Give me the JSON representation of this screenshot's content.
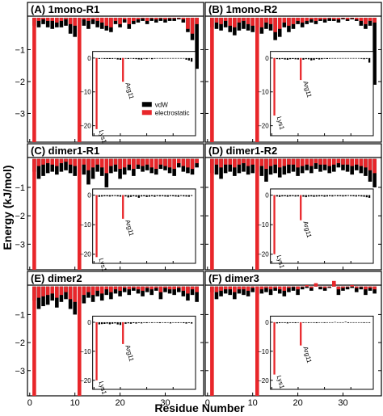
{
  "figure": {
    "xlabel": "Residue Number",
    "ylabel": "Energy (kJ/mol)",
    "colors": {
      "vdw": "#000000",
      "electrostatic": "#e8262a"
    }
  },
  "legend": {
    "vdw": "vdW",
    "electrostatic": "electrostatic"
  },
  "chart_data": [
    {
      "type": "bar",
      "panel": "(A) 1mono-R1",
      "x": [
        1,
        2,
        3,
        4,
        5,
        6,
        7,
        8,
        9,
        10,
        11,
        12,
        13,
        14,
        15,
        16,
        17,
        18,
        19,
        20,
        21,
        22,
        23,
        24,
        25,
        26,
        27,
        28,
        29,
        30,
        31,
        32,
        33,
        34,
        35,
        36,
        37
      ],
      "series": [
        {
          "name": "vdW",
          "values": [
            -0.25,
            -0.3,
            -0.2,
            -0.3,
            -0.35,
            -0.3,
            -0.3,
            -0.25,
            -0.5,
            -0.6,
            -0.15,
            -0.25,
            -0.35,
            -0.2,
            -0.3,
            -0.35,
            -0.4,
            -0.45,
            -0.2,
            -0.3,
            -0.15,
            -0.35,
            -0.2,
            -0.15,
            -0.1,
            -0.2,
            -0.1,
            -0.15,
            -0.1,
            -0.15,
            -0.1,
            -0.1,
            -0.05,
            -0.15,
            -0.45,
            -0.7,
            -1.6
          ]
        },
        {
          "name": "electrostatic",
          "values": [
            -3.9,
            -0.1,
            -0.05,
            -0.1,
            -0.1,
            -0.15,
            -0.1,
            -0.05,
            -0.2,
            -0.25,
            -3.9,
            -0.05,
            -0.1,
            -0.05,
            -0.1,
            -0.15,
            -0.25,
            -0.3,
            -0.1,
            -0.2,
            -0.05,
            -0.2,
            -0.1,
            -0.05,
            -0.02,
            -0.1,
            -0.02,
            -0.05,
            -0.02,
            -0.05,
            -0.02,
            -0.02,
            0,
            -0.05,
            -0.35,
            -0.5,
            -0.2
          ]
        }
      ],
      "inset": {
        "labels": [
          "Lys1",
          "Arg11"
        ],
        "electrostatic": [
          -21,
          -7
        ],
        "ylim": [
          -22,
          1
        ],
        "yticks": [
          0,
          -10,
          -20
        ]
      },
      "ylim": [
        -3.9,
        0.05
      ],
      "yticks": [
        -1,
        -2,
        -3
      ]
    },
    {
      "type": "bar",
      "panel": "(B) 1mono-R2",
      "x": [
        1,
        2,
        3,
        4,
        5,
        6,
        7,
        8,
        9,
        10,
        11,
        12,
        13,
        14,
        15,
        16,
        17,
        18,
        19,
        20,
        21,
        22,
        23,
        24,
        25,
        26,
        27,
        28,
        29,
        30,
        31,
        32,
        33,
        34,
        35,
        36,
        37
      ],
      "series": [
        {
          "name": "vdW",
          "values": [
            -0.3,
            -0.35,
            -0.4,
            -0.3,
            -0.45,
            -0.55,
            -0.4,
            -0.35,
            -0.4,
            -0.45,
            -0.3,
            -0.5,
            -0.35,
            -0.4,
            -0.7,
            -0.6,
            -0.3,
            -0.45,
            -0.35,
            -0.2,
            -0.3,
            -0.2,
            -0.15,
            -0.2,
            -0.1,
            -0.15,
            -0.1,
            -0.1,
            -0.15,
            -0.05,
            -0.1,
            -0.05,
            -0.1,
            -0.25,
            -0.35,
            -0.25,
            -2.1
          ]
        },
        {
          "name": "electrostatic",
          "values": [
            -3.9,
            -0.15,
            -0.2,
            -0.1,
            -0.25,
            -0.3,
            -0.15,
            -0.1,
            -0.2,
            -0.25,
            -3.9,
            -0.3,
            -0.15,
            -0.2,
            -0.45,
            -0.35,
            -0.15,
            -0.25,
            -0.2,
            -0.1,
            -0.15,
            -0.1,
            -0.05,
            -0.1,
            -0.05,
            -0.05,
            -0.02,
            -0.05,
            -0.05,
            0,
            -0.05,
            0,
            -0.05,
            -0.1,
            -0.2,
            -0.1,
            -0.15
          ]
        }
      ],
      "inset": {
        "labels": [
          "Lys1",
          "Arg11"
        ],
        "electrostatic": [
          -17,
          -6.5
        ],
        "ylim": [
          -22,
          1
        ],
        "yticks": [
          0,
          -10,
          -20
        ]
      },
      "ylim": [
        -3.9,
        0.05
      ],
      "yticks": [
        -1,
        -2,
        -3
      ]
    },
    {
      "type": "bar",
      "panel": "(C) dimer1-R1",
      "x": [
        1,
        2,
        3,
        4,
        5,
        6,
        7,
        8,
        9,
        10,
        11,
        12,
        13,
        14,
        15,
        16,
        17,
        18,
        19,
        20,
        21,
        22,
        23,
        24,
        25,
        26,
        27,
        28,
        29,
        30,
        31,
        32,
        33,
        34,
        35,
        36,
        37
      ],
      "series": [
        {
          "name": "vdW",
          "values": [
            -0.45,
            -0.7,
            -0.6,
            -0.5,
            -0.45,
            -0.55,
            -0.45,
            -0.4,
            -0.5,
            -0.6,
            -0.4,
            -0.55,
            -0.9,
            -0.7,
            -0.45,
            -0.6,
            -1.0,
            -0.5,
            -0.45,
            -0.7,
            -0.55,
            -0.4,
            -0.6,
            -0.35,
            -0.45,
            -0.4,
            -0.5,
            -0.55,
            -0.35,
            -0.4,
            -0.5,
            -0.6,
            -0.3,
            -0.45,
            -0.5,
            -0.55,
            -0.3
          ]
        },
        {
          "name": "electrostatic",
          "values": [
            -3.9,
            -0.25,
            -0.2,
            -0.15,
            -0.2,
            -0.25,
            -0.15,
            -0.1,
            -0.2,
            -0.25,
            -3.9,
            -0.2,
            -0.4,
            -0.3,
            -0.2,
            -0.3,
            -0.5,
            -0.25,
            -0.2,
            -0.35,
            -0.3,
            -0.2,
            -0.35,
            -0.2,
            -0.25,
            -0.2,
            -0.3,
            -0.35,
            -0.2,
            -0.25,
            -0.3,
            -0.35,
            -0.15,
            -0.25,
            -0.3,
            -0.35,
            -0.15
          ]
        }
      ],
      "inset": {
        "labels": [
          "Lys1",
          "Arg11"
        ],
        "electrostatic": [
          -21,
          -8
        ],
        "ylim": [
          -22,
          1
        ],
        "yticks": [
          0,
          -10,
          -20
        ]
      },
      "ylim": [
        -3.9,
        0.05
      ],
      "yticks": [
        -1,
        -2,
        -3
      ]
    },
    {
      "type": "bar",
      "panel": "(D) dimer1-R2",
      "x": [
        1,
        2,
        3,
        4,
        5,
        6,
        7,
        8,
        9,
        10,
        11,
        12,
        13,
        14,
        15,
        16,
        17,
        18,
        19,
        20,
        21,
        22,
        23,
        24,
        25,
        26,
        27,
        28,
        29,
        30,
        31,
        32,
        33,
        34,
        35,
        36,
        37
      ],
      "series": [
        {
          "name": "vdW",
          "values": [
            -0.5,
            -0.55,
            -0.7,
            -0.5,
            -0.45,
            -0.6,
            -0.5,
            -0.45,
            -0.55,
            -0.5,
            -0.45,
            -0.6,
            -0.8,
            -0.55,
            -0.5,
            -0.65,
            -0.55,
            -0.5,
            -0.45,
            -0.6,
            -0.5,
            -0.4,
            -0.5,
            -0.35,
            -0.45,
            -0.4,
            -0.5,
            -0.45,
            -0.3,
            -0.4,
            -0.45,
            -0.55,
            -0.4,
            -0.5,
            -0.6,
            -0.8,
            -1.0
          ]
        },
        {
          "name": "electrostatic",
          "values": [
            -3.9,
            -0.2,
            -0.3,
            -0.2,
            -0.2,
            -0.3,
            -0.2,
            -0.15,
            -0.25,
            -0.2,
            -3.9,
            -0.25,
            -0.35,
            -0.25,
            -0.2,
            -0.3,
            -0.25,
            -0.2,
            -0.2,
            -0.3,
            -0.25,
            -0.2,
            -0.25,
            -0.15,
            -0.2,
            -0.2,
            -0.25,
            -0.2,
            -0.15,
            -0.2,
            -0.2,
            -0.25,
            -0.2,
            -0.25,
            -0.3,
            -0.4,
            -0.5
          ]
        }
      ],
      "inset": {
        "labels": [
          "Lys1",
          "Arg11"
        ],
        "electrostatic": [
          -20,
          -8.5
        ],
        "ylim": [
          -22,
          1
        ],
        "yticks": [
          0,
          -10,
          -20
        ]
      },
      "ylim": [
        -3.9,
        0.05
      ],
      "yticks": [
        -1,
        -2,
        -3
      ]
    },
    {
      "type": "bar",
      "panel": "(E) dimer2",
      "x": [
        1,
        2,
        3,
        4,
        5,
        6,
        7,
        8,
        9,
        10,
        11,
        12,
        13,
        14,
        15,
        16,
        17,
        18,
        19,
        20,
        21,
        22,
        23,
        24,
        25,
        26,
        27,
        28,
        29,
        30,
        31,
        32,
        33,
        34,
        35,
        36,
        37
      ],
      "series": [
        {
          "name": "vdW",
          "values": [
            -0.5,
            -0.8,
            -0.7,
            -0.65,
            -0.5,
            -0.75,
            -0.55,
            -0.45,
            -0.8,
            -1.0,
            -0.5,
            -0.6,
            -0.4,
            -0.55,
            -0.35,
            -0.5,
            -0.3,
            -0.45,
            -0.25,
            -0.35,
            -0.2,
            -0.3,
            -0.15,
            -0.25,
            -0.35,
            -0.2,
            -0.3,
            -0.15,
            -0.45,
            -0.2,
            -0.25,
            -0.3,
            -0.2,
            -0.35,
            -0.5,
            -0.3,
            -0.55
          ]
        },
        {
          "name": "electrostatic",
          "values": [
            -3.9,
            -0.4,
            -0.35,
            -0.3,
            -0.25,
            -0.4,
            -0.3,
            -0.2,
            -0.45,
            -0.55,
            -3.9,
            -0.3,
            -0.2,
            -0.3,
            -0.15,
            -0.25,
            -0.1,
            -0.2,
            -0.1,
            -0.15,
            -0.05,
            -0.1,
            -0.05,
            -0.1,
            -0.15,
            -0.05,
            -0.1,
            -0.05,
            -0.2,
            -0.05,
            -0.1,
            -0.1,
            -0.05,
            -0.15,
            -0.25,
            -0.1,
            -0.2
          ]
        }
      ],
      "inset": {
        "labels": [
          "Lys1",
          "Arg11"
        ],
        "electrostatic": [
          -20,
          -7.5
        ],
        "ylim": [
          -22,
          1
        ],
        "yticks": [
          0,
          -10,
          -20
        ]
      },
      "ylim": [
        -3.9,
        0.05
      ],
      "yticks": [
        -1,
        -2,
        -3
      ]
    },
    {
      "type": "bar",
      "panel": "(F) dimer3",
      "x": [
        1,
        2,
        3,
        4,
        5,
        6,
        7,
        8,
        9,
        10,
        11,
        12,
        13,
        14,
        15,
        16,
        17,
        18,
        19,
        20,
        21,
        22,
        23,
        24,
        25,
        26,
        27,
        28,
        29,
        30,
        31,
        32,
        33,
        34,
        35,
        36,
        37
      ],
      "series": [
        {
          "name": "vdW",
          "values": [
            -0.2,
            -0.45,
            -0.35,
            -0.25,
            -0.3,
            -0.45,
            -0.25,
            -0.3,
            -0.35,
            -0.2,
            -0.3,
            -0.25,
            -0.2,
            -0.3,
            -0.15,
            -0.25,
            -0.35,
            -0.2,
            -0.15,
            -0.3,
            -0.1,
            -0.05,
            -0.15,
            0.05,
            -0.1,
            -0.15,
            -0.05,
            0.1,
            -0.3,
            -0.15,
            -0.1,
            -0.05,
            -0.2,
            -0.1,
            -0.3,
            -0.15,
            -0.25
          ]
        },
        {
          "name": "electrostatic",
          "values": [
            -3.9,
            -0.2,
            -0.15,
            -0.1,
            -0.1,
            -0.2,
            -0.1,
            -0.1,
            -0.15,
            -0.05,
            -3.9,
            -0.1,
            -0.05,
            -0.1,
            -0.05,
            -0.1,
            -0.15,
            -0.05,
            0,
            -0.1,
            0,
            0.05,
            -0.05,
            0.12,
            0,
            -0.05,
            0,
            0.2,
            -0.1,
            -0.05,
            0,
            0.05,
            -0.05,
            0,
            -0.1,
            -0.05,
            -0.1
          ]
        }
      ],
      "inset": {
        "labels": [
          "Lys1",
          "Arg11"
        ],
        "electrostatic": [
          -18,
          -8
        ],
        "ylim": [
          -22,
          1
        ],
        "yticks": [
          0,
          -10,
          -20
        ]
      },
      "ylim": [
        -3.9,
        0.05
      ],
      "yticks": [
        -1,
        -2,
        -3
      ]
    }
  ],
  "xaxis": {
    "ticks": [
      0,
      10,
      20,
      30
    ],
    "range": [
      -0.5,
      38.5
    ]
  }
}
